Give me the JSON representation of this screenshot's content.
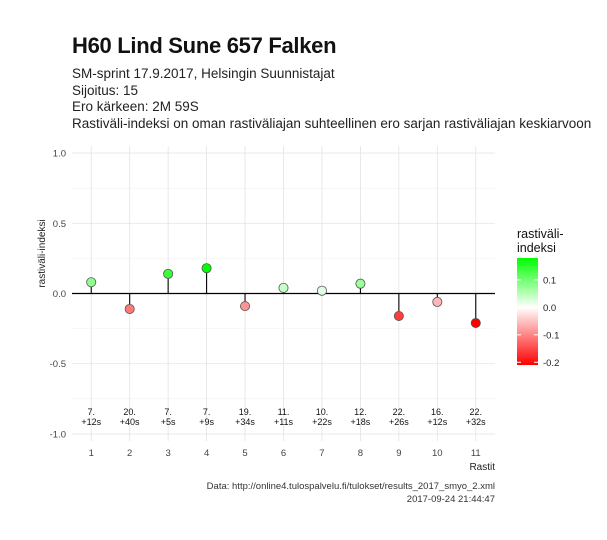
{
  "header": {
    "title": "H60 Lind Sune 657 Falken",
    "subtitle_lines": [
      "SM-sprint 17.9.2017, Helsingin Suunnistajat",
      "Sijoitus: 15",
      "Ero kärkeen: 2M 59S",
      "Rastiväli-indeksi on oman rastiväliajan suhteellinen ero sarjan rastiväliajan keskiarvoon"
    ]
  },
  "caption": {
    "source": "Data: http://online4.tulospalvelu.fi/tulokset/results_2017_smyo_2.xml",
    "timestamp": "2017-09-24 21:44:47"
  },
  "chart_data": {
    "type": "scatter",
    "style": "lollipop",
    "x": [
      1,
      2,
      3,
      4,
      5,
      6,
      7,
      8,
      9,
      10,
      11
    ],
    "values": [
      0.08,
      -0.11,
      0.14,
      0.18,
      -0.09,
      0.04,
      0.02,
      0.07,
      -0.16,
      -0.06,
      -0.21
    ],
    "point_labels": [
      [
        "7.",
        "+12s"
      ],
      [
        "20.",
        "+40s"
      ],
      [
        "7.",
        "+5s"
      ],
      [
        "7.",
        "+9s"
      ],
      [
        "19.",
        "+34s"
      ],
      [
        "11.",
        "+11s"
      ],
      [
        "10.",
        "+22s"
      ],
      [
        "12.",
        "+18s"
      ],
      [
        "22.",
        "+26s"
      ],
      [
        "16.",
        "+12s"
      ],
      [
        "22.",
        "+32s"
      ]
    ],
    "xlabel": "Rastit",
    "ylabel": "rastiväli-indeksi",
    "xticks": [
      "1",
      "2",
      "3",
      "4",
      "5",
      "6",
      "7",
      "8",
      "9",
      "10",
      "11"
    ],
    "yticks": [
      1.0,
      0.5,
      0.0,
      -0.5,
      -1.0
    ],
    "ytick_labels": [
      "1.0",
      "0.5",
      "0.0",
      "-0.5",
      "-1.0"
    ],
    "xlim": [
      0.5,
      11.5
    ],
    "ylim": [
      -1.05,
      1.05
    ],
    "grid": true,
    "legend": {
      "title_lines": [
        "rastiväli-",
        "indeksi"
      ],
      "position": "right",
      "tick_values": [
        0.1,
        0.0,
        -0.1,
        -0.2
      ],
      "tick_labels": [
        "0.1",
        "0.0",
        "-0.1",
        "-0.2"
      ],
      "range": [
        -0.21,
        0.18
      ]
    },
    "colors": {
      "high": "#00ff00",
      "mid": "#ffffff",
      "low": "#ff0000",
      "grid": "#e3e3e3",
      "zero_line": "#000000"
    }
  }
}
